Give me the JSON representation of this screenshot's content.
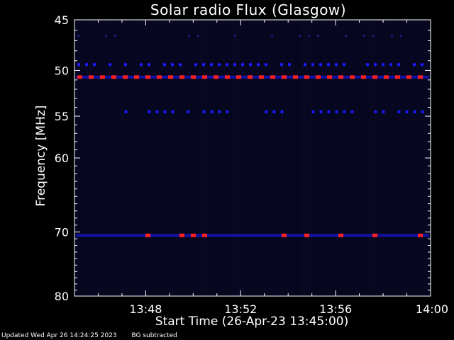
{
  "chart": {
    "title": "Solar radio Flux (Glasgow)",
    "ylabel": "Frequency [MHz]",
    "xlabel": "Start Time (26-Apr-23 13:45:00)"
  },
  "footer": {
    "updated": "Updated Wed Apr 26 14:24:25 2023",
    "note": "BG subtracted"
  },
  "chart_data": {
    "type": "heatmap",
    "title": "Solar radio Flux (Glasgow)",
    "xlabel": "Start Time (26-Apr-23 13:45:00)",
    "ylabel": "Frequency [MHz]",
    "xlim": [
      "13:45",
      "14:00"
    ],
    "ylim": [
      45,
      80
    ],
    "yscale": "log",
    "xticks": [
      "13:48",
      "13:52",
      "13:56",
      "14:00"
    ],
    "yticks": [
      45,
      50,
      55,
      60,
      70,
      80
    ],
    "colors": {
      "background": "#000000",
      "low": "#06061e",
      "mid": "#1a1aff",
      "high": "#ff2020",
      "axes": "#ffffff"
    },
    "bands": [
      {
        "freq": 46.5,
        "intensity": "low",
        "start": "13:45",
        "end": "14:00"
      },
      {
        "freq": 49.4,
        "intensity": "mid",
        "start": "13:45",
        "end": "14:00"
      },
      {
        "freq": 50.7,
        "intensity": "high",
        "start": "13:45",
        "end": "14:00"
      },
      {
        "freq": 54.5,
        "intensity": "mid",
        "start": "13:46",
        "end": "14:00"
      },
      {
        "freq": 70.5,
        "intensity": "high",
        "start": "13:45",
        "end": "14:00"
      }
    ]
  }
}
